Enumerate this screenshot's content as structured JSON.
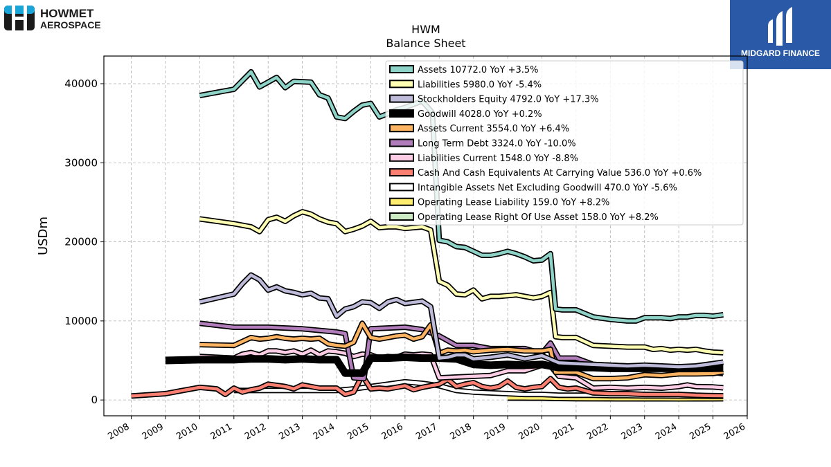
{
  "company_logo": {
    "line1": "HOWMET",
    "line2": "AEROSPACE",
    "color": "#1b1b1b",
    "accent": "#19a5d8"
  },
  "brand_logo": {
    "name": "MIDGARD FINANCE",
    "bg": "#2a5aa7",
    "fg": "#ffffff"
  },
  "chart_data": {
    "type": "line",
    "title": "HWM",
    "subtitle": "Balance  Sheet",
    "ylabel": "USDm",
    "xlabel": "",
    "xlim": [
      2007.2,
      2026.0
    ],
    "ylim": [
      -2000,
      43500
    ],
    "xticks": [
      2008,
      2009,
      2010,
      2011,
      2012,
      2013,
      2014,
      2015,
      2016,
      2017,
      2018,
      2019,
      2020,
      2021,
      2022,
      2023,
      2024,
      2025,
      2026
    ],
    "yticks": [
      0,
      10000,
      20000,
      30000,
      40000
    ],
    "grid": true,
    "legend_position": "top-right",
    "series": [
      {
        "name": "Assets",
        "legend": "Assets  10772.0 YoY +3.5%",
        "color": "#8dd3c7",
        "x": [
          2010.0,
          2011.0,
          2011.5,
          2011.75,
          2012.25,
          2012.5,
          2012.75,
          2013.25,
          2013.5,
          2013.75,
          2014.0,
          2014.25,
          2014.5,
          2014.75,
          2015.0,
          2015.25,
          2015.5,
          2015.75,
          2016.0,
          2016.5,
          2016.75,
          2016.8,
          2017.0,
          2017.25,
          2017.5,
          2017.75,
          2018.0,
          2018.25,
          2018.5,
          2018.75,
          2019.0,
          2019.25,
          2019.5,
          2019.75,
          2020.0,
          2020.25,
          2020.4,
          2020.6,
          2021.0,
          2021.5,
          2022.0,
          2022.5,
          2022.75,
          2023.0,
          2023.5,
          2023.75,
          2024.0,
          2024.25,
          2024.5,
          2024.75,
          2025.0,
          2025.3
        ],
        "y": [
          38500,
          39300,
          41500,
          39600,
          40800,
          39500,
          40300,
          40200,
          38600,
          38200,
          35800,
          35600,
          36500,
          37300,
          37500,
          35800,
          36200,
          36700,
          37000,
          37800,
          36600,
          36300,
          20200,
          20000,
          19400,
          19300,
          18800,
          18300,
          18300,
          18500,
          18800,
          18500,
          18100,
          17600,
          17700,
          18500,
          11500,
          11400,
          11400,
          10500,
          10200,
          10000,
          10000,
          10400,
          10400,
          10300,
          10500,
          10500,
          10700,
          10700,
          10600,
          10772
        ]
      },
      {
        "name": "Liabilities",
        "legend": "Liabilities  5980.0 YoY -5.4%",
        "color": "#ffffb3",
        "x": [
          2010.0,
          2011.0,
          2011.5,
          2011.75,
          2012.0,
          2012.25,
          2012.5,
          2012.75,
          2013.0,
          2013.25,
          2013.5,
          2013.75,
          2014.0,
          2014.25,
          2014.5,
          2014.75,
          2015.0,
          2015.25,
          2015.5,
          2015.75,
          2016.0,
          2016.5,
          2016.75,
          2017.0,
          2017.25,
          2017.5,
          2017.75,
          2018.0,
          2018.25,
          2018.5,
          2018.75,
          2019.0,
          2019.25,
          2019.5,
          2019.75,
          2020.0,
          2020.25,
          2020.4,
          2020.6,
          2021.0,
          2021.5,
          2022.0,
          2022.5,
          2023.0,
          2023.25,
          2023.5,
          2023.75,
          2024.0,
          2024.25,
          2024.5,
          2024.75,
          2025.0,
          2025.3
        ],
        "y": [
          22900,
          22300,
          21900,
          21300,
          22800,
          23100,
          22600,
          23300,
          23800,
          23500,
          22900,
          22500,
          22300,
          21300,
          21600,
          22000,
          22600,
          21800,
          21900,
          21900,
          21700,
          21900,
          21500,
          15000,
          14500,
          13400,
          13300,
          13900,
          12800,
          13100,
          13100,
          13200,
          13300,
          13100,
          12900,
          13100,
          13600,
          8000,
          7900,
          7900,
          6900,
          6800,
          6700,
          6700,
          6400,
          6500,
          6300,
          6400,
          6300,
          6400,
          6200,
          6050,
          5980
        ]
      },
      {
        "name": "Stockholders Equity",
        "legend": "Stockholders Equity  4792.0 YoY +17.3%",
        "color": "#bebada",
        "x": [
          2010.0,
          2011.0,
          2011.25,
          2011.5,
          2011.75,
          2012.0,
          2012.25,
          2012.5,
          2012.75,
          2013.0,
          2013.25,
          2013.5,
          2013.75,
          2014.0,
          2014.25,
          2014.5,
          2014.75,
          2015.0,
          2015.25,
          2015.5,
          2015.75,
          2016.0,
          2016.5,
          2016.75,
          2017.0,
          2017.25,
          2017.5,
          2017.75,
          2018.0,
          2018.5,
          2019.0,
          2019.5,
          2020.0,
          2020.5,
          2021.0,
          2021.5,
          2022.0,
          2022.5,
          2023.0,
          2023.5,
          2024.0,
          2024.5,
          2025.0,
          2025.3
        ],
        "y": [
          12400,
          13400,
          14700,
          15800,
          15200,
          13900,
          14300,
          13800,
          13600,
          13300,
          13500,
          12900,
          12800,
          10600,
          11500,
          11800,
          12400,
          12300,
          11600,
          12400,
          12700,
          12200,
          12500,
          11800,
          5300,
          5400,
          5700,
          5700,
          5200,
          5400,
          5700,
          5200,
          5600,
          4700,
          4600,
          4500,
          4400,
          4300,
          4400,
          4300,
          4200,
          4300,
          4600,
          4792
        ]
      },
      {
        "name": "Goodwill",
        "legend": "Goodwill  4028.0 YoY +0.2%",
        "color": "#000000",
        "x": [
          2009.0,
          2010.0,
          2011.0,
          2011.5,
          2012.0,
          2012.5,
          2013.0,
          2013.5,
          2014.0,
          2014.25,
          2014.5,
          2014.75,
          2015.0,
          2015.5,
          2016.0,
          2016.5,
          2017.0,
          2017.5,
          2018.0,
          2018.5,
          2019.0,
          2019.5,
          2020.0,
          2020.5,
          2021.0,
          2021.5,
          2022.0,
          2022.5,
          2023.0,
          2023.5,
          2024.0,
          2024.5,
          2025.0,
          2025.3
        ],
        "y": [
          5000,
          5100,
          5100,
          5200,
          5200,
          5100,
          5200,
          5100,
          5100,
          3400,
          3400,
          3400,
          5300,
          5300,
          5400,
          5300,
          5300,
          5200,
          4500,
          4400,
          4500,
          4400,
          4500,
          4100,
          4100,
          4100,
          4000,
          4000,
          4000,
          4000,
          4000,
          4000,
          4020,
          4028
        ]
      },
      {
        "name": "Assets Current",
        "legend": "Assets Current  3554.0 YoY +6.4%",
        "color": "#fdb462",
        "x": [
          2010.0,
          2011.0,
          2011.25,
          2011.5,
          2011.75,
          2012.0,
          2012.25,
          2012.5,
          2012.75,
          2013.0,
          2013.25,
          2013.5,
          2013.75,
          2014.0,
          2014.25,
          2014.5,
          2014.75,
          2015.0,
          2015.25,
          2015.5,
          2015.75,
          2016.0,
          2016.25,
          2016.5,
          2016.75,
          2017.0,
          2017.25,
          2017.5,
          2017.75,
          2018.0,
          2018.5,
          2019.0,
          2019.5,
          2020.0,
          2020.25,
          2020.4,
          2021.0,
          2021.5,
          2022.0,
          2022.5,
          2023.0,
          2023.5,
          2024.0,
          2024.5,
          2025.0,
          2025.3
        ],
        "y": [
          7000,
          6900,
          7400,
          7900,
          7700,
          7800,
          8000,
          7800,
          7700,
          7800,
          7700,
          7800,
          7100,
          6900,
          6800,
          7300,
          9700,
          7900,
          7700,
          7900,
          8100,
          8200,
          7700,
          8000,
          9500,
          5900,
          6300,
          6200,
          6300,
          6100,
          6300,
          6400,
          6200,
          6200,
          6400,
          3500,
          3500,
          2700,
          2700,
          2800,
          3200,
          3100,
          3300,
          3300,
          3350,
          3554
        ]
      },
      {
        "name": "Long Term Debt",
        "legend": "Long Term Debt  3324.0 YoY -10.0%",
        "color": "#b07dba",
        "x": [
          2010.0,
          2011.0,
          2012.0,
          2013.0,
          2014.0,
          2014.25,
          2014.5,
          2014.8,
          2015.0,
          2016.0,
          2016.5,
          2017.0,
          2017.5,
          2018.0,
          2018.5,
          2019.0,
          2019.5,
          2020.0,
          2020.25,
          2020.5,
          2021.0,
          2021.5,
          2022.0,
          2022.5,
          2023.0,
          2023.5,
          2024.0,
          2024.5,
          2025.0,
          2025.3
        ],
        "y": [
          9700,
          9200,
          9200,
          9000,
          8600,
          8400,
          2800,
          2700,
          9000,
          9200,
          8900,
          8100,
          6900,
          6900,
          6500,
          6500,
          6500,
          5900,
          7200,
          5300,
          5300,
          4500,
          4400,
          4300,
          4300,
          4100,
          3800,
          3700,
          3500,
          3324
        ]
      },
      {
        "name": "Liabilities Current",
        "legend": "Liabilities Current  1548.0 YoY -8.8%",
        "color": "#fccde5",
        "x": [
          2010.0,
          2011.0,
          2011.25,
          2011.5,
          2011.75,
          2012.0,
          2012.25,
          2012.5,
          2012.75,
          2013.0,
          2013.25,
          2013.5,
          2013.75,
          2014.0,
          2014.25,
          2014.5,
          2014.75,
          2015.0,
          2015.25,
          2015.5,
          2015.75,
          2016.0,
          2016.25,
          2016.5,
          2016.75,
          2017.0,
          2017.5,
          2018.0,
          2018.5,
          2019.0,
          2019.5,
          2020.0,
          2020.25,
          2020.5,
          2021.0,
          2021.5,
          2022.0,
          2022.5,
          2023.0,
          2023.5,
          2024.0,
          2024.25,
          2024.5,
          2025.0,
          2025.3
        ],
        "y": [
          5500,
          5300,
          5800,
          6000,
          5700,
          6200,
          6200,
          6000,
          6200,
          5800,
          6300,
          5700,
          6200,
          6100,
          5900,
          5500,
          5800,
          5700,
          5300,
          5500,
          5400,
          5800,
          5700,
          5800,
          5700,
          2800,
          2900,
          3000,
          3100,
          3700,
          3700,
          4400,
          4300,
          3000,
          2800,
          1500,
          1600,
          1500,
          1600,
          1500,
          1700,
          1900,
          1700,
          1650,
          1548
        ]
      },
      {
        "name": "Cash And Cash Equivalents At Carrying Value",
        "legend": "Cash And Cash Equivalents At Carrying Value  536.0 YoY +0.6%",
        "color": "#fb8072",
        "x": [
          2008.0,
          2009.0,
          2010.0,
          2010.5,
          2010.75,
          2011.0,
          2011.25,
          2011.5,
          2011.75,
          2012.0,
          2012.5,
          2012.75,
          2013.0,
          2013.5,
          2014.0,
          2014.25,
          2014.5,
          2014.75,
          2015.0,
          2015.25,
          2015.5,
          2016.0,
          2016.25,
          2016.5,
          2016.75,
          2017.0,
          2017.25,
          2017.5,
          2017.75,
          2018.0,
          2018.25,
          2018.5,
          2018.75,
          2019.0,
          2019.25,
          2019.5,
          2019.75,
          2020.0,
          2020.25,
          2020.5,
          2020.75,
          2021.0,
          2021.5,
          2022.0,
          2022.5,
          2023.0,
          2023.5,
          2024.0,
          2024.5,
          2025.0,
          2025.3
        ],
        "y": [
          500,
          800,
          1600,
          1400,
          700,
          1500,
          1000,
          1300,
          1500,
          2000,
          1700,
          1400,
          1900,
          1500,
          1500,
          700,
          1000,
          3100,
          1400,
          1500,
          1400,
          1800,
          1300,
          1600,
          1800,
          2000,
          2600,
          1700,
          2000,
          2200,
          1700,
          1500,
          1700,
          2400,
          1600,
          1400,
          1600,
          1700,
          2700,
          1600,
          1400,
          1500,
          900,
          800,
          800,
          700,
          700,
          700,
          600,
          550,
          536
        ]
      },
      {
        "name": "Intangible Assets Net Excluding Goodwill",
        "legend": "Intangible Assets Net Excluding Goodwill  470.0 YoY -5.6%",
        "color": "#ffffff",
        "x": [
          2011.0,
          2012.0,
          2013.0,
          2014.0,
          2014.5,
          2015.0,
          2015.5,
          2016.0,
          2016.5,
          2017.0,
          2017.5,
          2018.0,
          2018.5,
          2019.0,
          2019.5,
          2020.0,
          2020.5,
          2021.0,
          2021.5,
          2022.0,
          2022.5,
          2023.0,
          2023.5,
          2024.0,
          2024.5,
          2025.0,
          2025.3
        ],
        "y": [
          1200,
          1200,
          1200,
          1200,
          1400,
          1700,
          2000,
          2300,
          2100,
          1800,
          1200,
          1000,
          900,
          800,
          700,
          700,
          600,
          600,
          600,
          550,
          550,
          520,
          510,
          500,
          490,
          480,
          470
        ]
      },
      {
        "name": "Operating Lease Liability",
        "legend": "Operating Lease Liability  159.0 YoY +8.2%",
        "color": "#ffed6f",
        "x": [
          2019.0,
          2019.5,
          2020.0,
          2020.5,
          2021.0,
          2021.5,
          2022.0,
          2022.5,
          2023.0,
          2023.5,
          2024.0,
          2024.5,
          2025.0,
          2025.3
        ],
        "y": [
          260,
          250,
          240,
          200,
          180,
          170,
          160,
          150,
          150,
          150,
          145,
          150,
          155,
          159
        ]
      },
      {
        "name": "Operating Lease Right Of Use Asset",
        "legend": "Operating Lease Right Of Use Asset  158.0 YoY +8.2%",
        "color": "#ccebc5",
        "x": [
          2019.0,
          2019.5,
          2020.0,
          2020.5,
          2021.0,
          2021.5,
          2022.0,
          2022.5,
          2023.0,
          2023.5,
          2024.0,
          2024.5,
          2025.0,
          2025.3
        ],
        "y": [
          250,
          240,
          230,
          190,
          170,
          160,
          150,
          145,
          145,
          145,
          140,
          145,
          150,
          158
        ]
      }
    ]
  }
}
